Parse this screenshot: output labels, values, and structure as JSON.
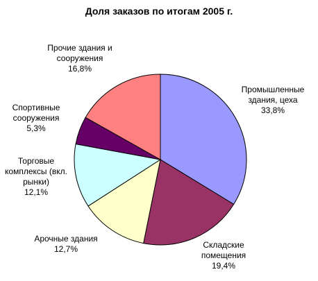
{
  "chart_data": {
    "type": "pie",
    "title": "Доля заказов по итогам 2005 г.",
    "categories": [
      "Промышленные здания, цеха",
      "Складские помещения",
      "Арочные здания",
      "Торговые комплексы (вкл. рынки)",
      "Спортивные сооружения",
      "Прочие здания и сооружения"
    ],
    "values": [
      33.8,
      19.4,
      12.7,
      12.1,
      5.3,
      16.8
    ],
    "value_labels": [
      "33,8%",
      "19,4%",
      "12,7%",
      "12,1%",
      "5,3%",
      "16,8%"
    ],
    "colors": [
      "#9999ff",
      "#993366",
      "#ffffcc",
      "#ccffff",
      "#660066",
      "#ff8080"
    ]
  }
}
